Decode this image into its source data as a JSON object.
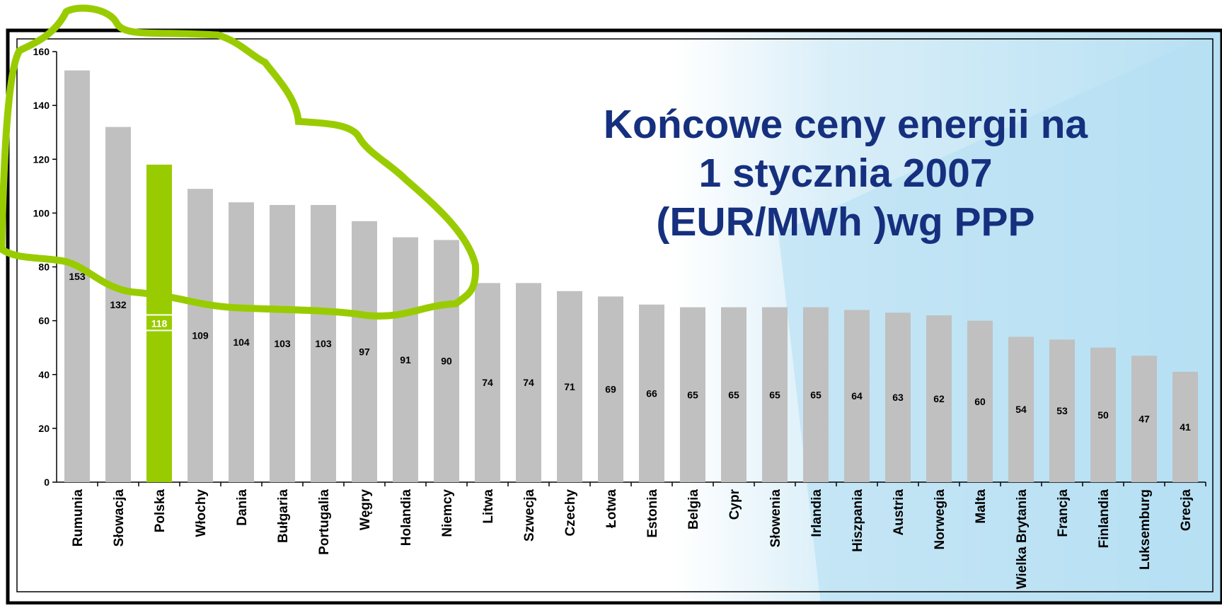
{
  "chart_data": {
    "type": "bar",
    "title_lines": [
      "Końcowe ceny energii na",
      "1 stycznia 2007",
      "(EUR/MWh )wg PPP"
    ],
    "categories": [
      "Rumunia",
      "Słowacja",
      "Polska",
      "Włochy",
      "Dania",
      "Bułgaria",
      "Portugalia",
      "Węgry",
      "Holandia",
      "Niemcy",
      "Litwa",
      "Szwecja",
      "Czechy",
      "Łotwa",
      "Estonia",
      "Belgia",
      "Cypr",
      "Słowenia",
      "Irlandia",
      "Hiszpania",
      "Austria",
      "Norwegia",
      "Malta",
      "Wielka Brytania",
      "Francja",
      "Finlandia",
      "Luksemburg",
      "Grecja"
    ],
    "values": [
      153,
      132,
      118,
      109,
      104,
      103,
      103,
      97,
      91,
      90,
      74,
      74,
      71,
      69,
      66,
      65,
      65,
      65,
      65,
      64,
      63,
      62,
      60,
      54,
      53,
      50,
      47,
      41
    ],
    "colors": [
      "#c0c0c0",
      "#c0c0c0",
      "#99cc00",
      "#c0c0c0",
      "#c0c0c0",
      "#c0c0c0",
      "#c0c0c0",
      "#c0c0c0",
      "#c0c0c0",
      "#c0c0c0",
      "#c0c0c0",
      "#c0c0c0",
      "#c0c0c0",
      "#c0c0c0",
      "#c0c0c0",
      "#c0c0c0",
      "#c0c0c0",
      "#c0c0c0",
      "#c0c0c0",
      "#c0c0c0",
      "#c0c0c0",
      "#c0c0c0",
      "#c0c0c0",
      "#c0c0c0",
      "#c0c0c0",
      "#c0c0c0",
      "#c0c0c0",
      "#c0c0c0"
    ],
    "ylim": [
      0,
      160
    ],
    "yticks": [
      0,
      20,
      40,
      60,
      80,
      100,
      120,
      140,
      160
    ],
    "grid": false
  }
}
